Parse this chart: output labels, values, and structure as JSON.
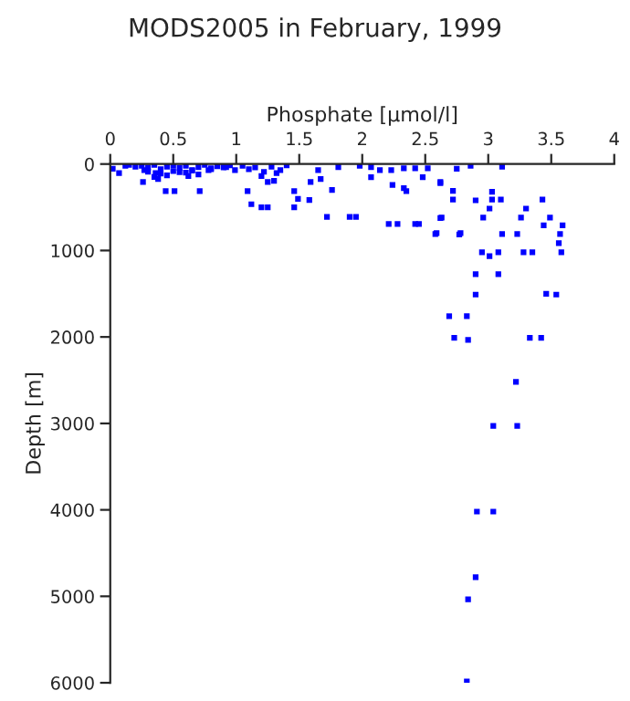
{
  "chart_data": {
    "type": "scatter",
    "title": "MODS2005 in February, 1999",
    "xlabel": "Phosphate [μmol/l]",
    "ylabel": "Depth [m]",
    "x": [
      0.02,
      0.07,
      0.12,
      0.26,
      0.27,
      0.36,
      0.38,
      0.44,
      0.51,
      0.62,
      0.71,
      0.78,
      0.92,
      0.99,
      1.09,
      1.12,
      1.2,
      1.25,
      1.2,
      1.25,
      1.3,
      1.32,
      1.46,
      1.46,
      1.49,
      1.58,
      1.59,
      1.65,
      1.67,
      1.72,
      1.76,
      1.81,
      1.9,
      1.95,
      1.98,
      2.07,
      2.07,
      2.14,
      2.21,
      2.23,
      2.24,
      2.28,
      2.33,
      2.33,
      2.35,
      2.42,
      2.45,
      2.42,
      2.48,
      2.52,
      2.62,
      2.62,
      2.59,
      2.78,
      0.15,
      0.2,
      0.25,
      0.3,
      0.35,
      0.4,
      0.45,
      0.5,
      0.55,
      0.6,
      0.65,
      0.7,
      0.75,
      0.8,
      0.85,
      0.9,
      0.95,
      0.3,
      0.4,
      0.5,
      0.6,
      0.7,
      0.8,
      0.9,
      0.35,
      0.45,
      0.55,
      0.65,
      1.05,
      1.1,
      1.15,
      1.22,
      1.28,
      1.35,
      1.4,
      3.22,
      3.04,
      3.23,
      2.91,
      3.04,
      2.9,
      2.84,
      2.83,
      2.69,
      2.83,
      2.73,
      2.84,
      3.33,
      3.42,
      2.9,
      3.46,
      3.54,
      2.9,
      3.08,
      2.95,
      3.01,
      3.08,
      3.28,
      3.35,
      3.58,
      3.56,
      3.57,
      3.59,
      3.49,
      3.44,
      3.26,
      3.3,
      3.11,
      3.23,
      3.01,
      3.03,
      3.1,
      2.9,
      2.72,
      2.72,
      3.03,
      2.62,
      3.43,
      2.96,
      2.63,
      2.58,
      2.77,
      2.86,
      2.75,
      3.11
    ],
    "values": [
      55,
      104,
      21,
      208,
      70,
      104,
      174,
      313,
      313,
      139,
      313,
      70,
      35,
      70,
      313,
      465,
      500,
      500,
      139,
      208,
      194,
      104,
      313,
      500,
      403,
      417,
      208,
      70,
      174,
      611,
      299,
      35,
      611,
      611,
      21,
      35,
      153,
      70,
      694,
      70,
      243,
      694,
      49,
      278,
      313,
      694,
      694,
      49,
      153,
      49,
      208,
      625,
      799,
      799,
      10,
      30,
      20,
      40,
      10,
      60,
      30,
      15,
      45,
      20,
      70,
      35,
      10,
      50,
      25,
      40,
      15,
      90,
      110,
      80,
      100,
      120,
      60,
      30,
      150,
      130,
      95,
      75,
      20,
      60,
      40,
      90,
      30,
      70,
      15,
      2520,
      3030,
      3030,
      4020,
      4020,
      4780,
      5035,
      5985,
      1760,
      1760,
      2010,
      2035,
      2010,
      2010,
      1510,
      1500,
      1510,
      1275,
      1275,
      1020,
      1065,
      1020,
      1020,
      1020,
      1020,
      915,
      810,
      710,
      620,
      710,
      620,
      515,
      810,
      810,
      515,
      410,
      410,
      420,
      410,
      310,
      320,
      220,
      410,
      620,
      620,
      810,
      815,
      20,
      55,
      30
    ],
    "color": "#0000ff",
    "marker": "square",
    "xlim": [
      0,
      4
    ],
    "xticks": [
      0,
      0.5,
      1,
      1.5,
      2,
      2.5,
      3,
      3.5,
      4
    ],
    "ylim": [
      6000,
      0
    ],
    "yticks": [
      0,
      1000,
      2000,
      3000,
      4000,
      5000,
      6000
    ],
    "grid": false
  }
}
